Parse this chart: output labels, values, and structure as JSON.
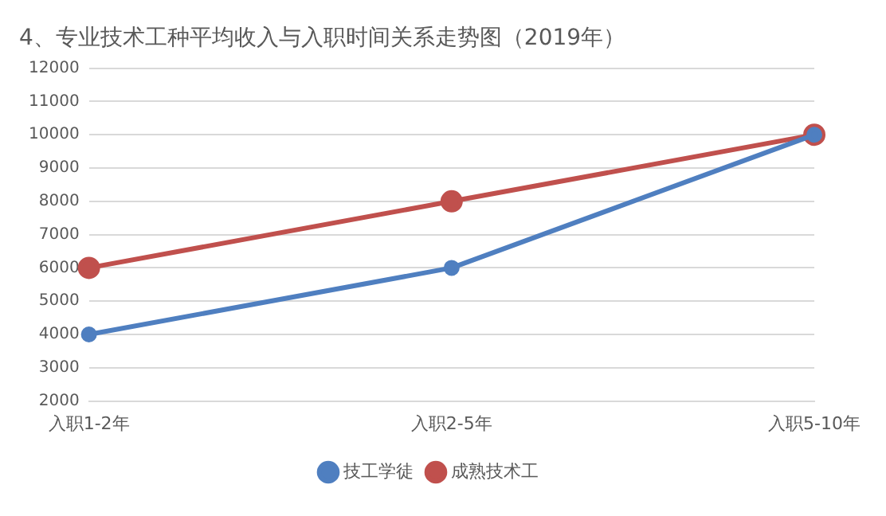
{
  "chart_data": {
    "type": "line",
    "title": "4、专业技术工种平均收入与入职时间关系走势图（2019年）",
    "categories": [
      "入职1-2年",
      "入职2-5年",
      "入职5-10年"
    ],
    "series": [
      {
        "name": "技工学徒",
        "color": "#4f7fc0",
        "values": [
          4000,
          6000,
          10000
        ]
      },
      {
        "name": "成熟技术工",
        "color": "#c0504d",
        "values": [
          6000,
          8000,
          10000
        ]
      }
    ],
    "ylim": [
      2000,
      12000
    ],
    "yticks": [
      2000,
      3000,
      4000,
      5000,
      6000,
      7000,
      8000,
      9000,
      10000,
      11000,
      12000
    ],
    "grid": "y",
    "legend": "bottom",
    "marker": "circle",
    "line_style": "solid"
  }
}
